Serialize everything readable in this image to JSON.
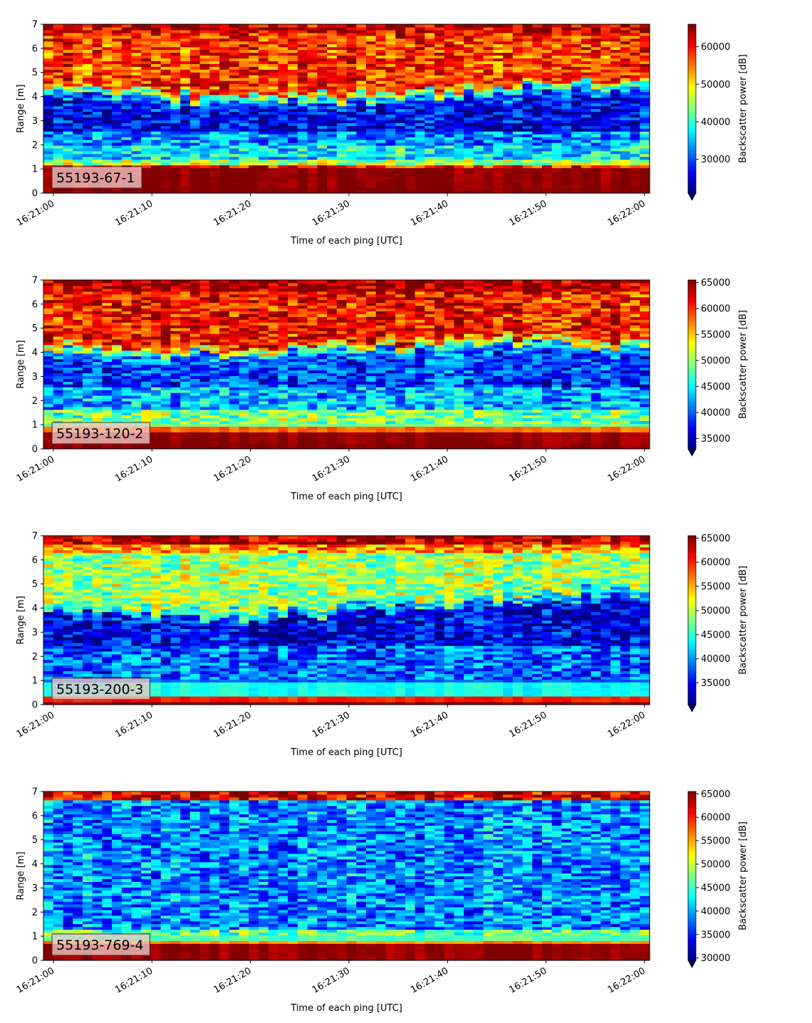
{
  "chart_data": [
    {
      "type": "heatmap",
      "label": "55193-67-1",
      "xlabel": "Time of each ping [UTC]",
      "ylabel": "Range [m]",
      "colorbar_label": "Backscatter power [dB]",
      "colormap": "jet",
      "x_range": [
        "16:21:00",
        "16:22:00"
      ],
      "xticks": [
        "16:21:00",
        "16:21:10",
        "16:21:20",
        "16:21:30",
        "16:21:40",
        "16:21:50",
        "16:22:00"
      ],
      "ylim": [
        0,
        7
      ],
      "yticks": [
        0,
        1,
        2,
        3,
        4,
        5,
        6,
        7
      ],
      "clim": [
        21000,
        66000
      ],
      "cbar_ticks": [
        30000,
        40000,
        50000,
        60000
      ],
      "profile_boundary": [
        [
          0,
          4.15
        ],
        [
          20,
          3.7
        ],
        [
          40,
          4.0
        ],
        [
          50,
          4.5
        ],
        [
          60,
          4.3
        ]
      ],
      "layers": [
        {
          "from": 0,
          "to": 0.25,
          "value": 66000
        },
        {
          "from": 0.25,
          "to": 1.0,
          "value": 65500
        },
        {
          "from": 1.0,
          "to": 1.2,
          "value": 60000
        },
        {
          "from": 1.2,
          "to": 1.4,
          "value": 45000
        },
        {
          "from": 1.4,
          "to": 2.0,
          "value": 37000
        },
        {
          "from": 2.0,
          "to": 2.6,
          "value": 33000
        },
        {
          "from": 2.6,
          "to": "boundary-0.3",
          "value": 26000
        },
        {
          "from": "boundary-0.3",
          "to": "boundary",
          "value": 30000
        },
        {
          "from": "boundary",
          "to": "boundary+0.25",
          "value": 42000
        },
        {
          "from": "boundary+0.25",
          "to": 6.6,
          "value": 58000
        },
        {
          "from": 6.6,
          "to": 7.0,
          "value": 63000
        }
      ]
    },
    {
      "type": "heatmap",
      "label": "55193-120-2",
      "xlabel": "Time of each ping [UTC]",
      "ylabel": "Range [m]",
      "colorbar_label": "Backscatter power [dB]",
      "colormap": "jet",
      "x_range": [
        "16:21:00",
        "16:22:00"
      ],
      "xticks": [
        "16:21:00",
        "16:21:10",
        "16:21:20",
        "16:21:30",
        "16:21:40",
        "16:21:50",
        "16:22:00"
      ],
      "ylim": [
        0,
        7
      ],
      "yticks": [
        0,
        1,
        2,
        3,
        4,
        5,
        6,
        7
      ],
      "clim": [
        33000,
        65500
      ],
      "cbar_ticks": [
        35000,
        40000,
        45000,
        50000,
        55000,
        60000,
        65000
      ],
      "profile_boundary": [
        [
          0,
          4.1
        ],
        [
          20,
          3.9
        ],
        [
          35,
          4.2
        ],
        [
          50,
          4.4
        ],
        [
          60,
          4.2
        ]
      ],
      "layers": [
        {
          "from": 0,
          "to": 0.25,
          "value": 65500
        },
        {
          "from": 0.25,
          "to": 0.75,
          "value": 65000
        },
        {
          "from": 0.75,
          "to": 0.95,
          "value": 58000
        },
        {
          "from": 0.95,
          "to": 1.6,
          "value": 49000
        },
        {
          "from": 1.6,
          "to": 2.6,
          "value": 43000
        },
        {
          "from": 2.6,
          "to": "boundary-0.3",
          "value": 39000
        },
        {
          "from": "boundary-0.3",
          "to": "boundary",
          "value": 42000
        },
        {
          "from": "boundary",
          "to": "boundary+0.25",
          "value": 52000
        },
        {
          "from": "boundary+0.25",
          "to": 6.5,
          "value": 61000
        },
        {
          "from": 6.5,
          "to": 7.0,
          "value": 64500
        }
      ]
    },
    {
      "type": "heatmap",
      "label": "55193-200-3",
      "xlabel": "Time of each ping [UTC]",
      "ylabel": "Range [m]",
      "colorbar_label": "Backscatter power [dB]",
      "colormap": "jet",
      "x_range": [
        "16:21:00",
        "16:22:00"
      ],
      "xticks": [
        "16:21:00",
        "16:21:10",
        "16:21:20",
        "16:21:30",
        "16:21:40",
        "16:21:50",
        "16:22:00"
      ],
      "ylim": [
        0,
        7
      ],
      "yticks": [
        0,
        1,
        2,
        3,
        4,
        5,
        6,
        7
      ],
      "clim": [
        30500,
        65500
      ],
      "cbar_ticks": [
        35000,
        40000,
        45000,
        50000,
        55000,
        60000,
        65000
      ],
      "profile_boundary": [
        [
          0,
          3.8
        ],
        [
          20,
          3.5
        ],
        [
          35,
          4.0
        ],
        [
          50,
          4.4
        ],
        [
          60,
          4.5
        ]
      ],
      "layers": [
        {
          "from": 0,
          "to": 0.15,
          "value": 65000
        },
        {
          "from": 0.15,
          "to": 0.3,
          "value": 60000
        },
        {
          "from": 0.3,
          "to": 0.9,
          "value": 44000
        },
        {
          "from": 0.9,
          "to": 2.5,
          "value": 38000
        },
        {
          "from": 2.5,
          "to": "boundary",
          "value": 34000
        },
        {
          "from": "boundary",
          "to": "boundary+0.3",
          "value": 43000
        },
        {
          "from": "boundary+0.3",
          "to": 6.3,
          "value": 49000
        },
        {
          "from": 6.3,
          "to": 6.6,
          "value": 56000
        },
        {
          "from": 6.6,
          "to": 7.0,
          "value": 64000
        }
      ]
    },
    {
      "type": "heatmap",
      "label": "55193-769-4",
      "xlabel": "Time of each ping [UTC]",
      "ylabel": "Range [m]",
      "colorbar_label": "Backscatter power [dB]",
      "colormap": "jet",
      "x_range": [
        "16:21:00",
        "16:22:00"
      ],
      "xticks": [
        "16:21:00",
        "16:21:10",
        "16:21:20",
        "16:21:30",
        "16:21:40",
        "16:21:50",
        "16:22:00"
      ],
      "ylim": [
        0,
        7
      ],
      "yticks": [
        0,
        1,
        2,
        3,
        4,
        5,
        6,
        7
      ],
      "clim": [
        29500,
        65500
      ],
      "cbar_ticks": [
        30000,
        35000,
        40000,
        45000,
        50000,
        55000,
        60000,
        65000
      ],
      "profile_boundary": [
        [
          0,
          6.6
        ],
        [
          60,
          6.6
        ]
      ],
      "layers": [
        {
          "from": 0,
          "to": 0.25,
          "value": 65000
        },
        {
          "from": 0.25,
          "to": 0.65,
          "value": 65000
        },
        {
          "from": 0.65,
          "to": 0.85,
          "value": 56000
        },
        {
          "from": 0.85,
          "to": 1.3,
          "value": 46000
        },
        {
          "from": 1.3,
          "to": 6.6,
          "value": 39000
        },
        {
          "from": 6.6,
          "to": 7.0,
          "value": 62000
        }
      ]
    }
  ]
}
